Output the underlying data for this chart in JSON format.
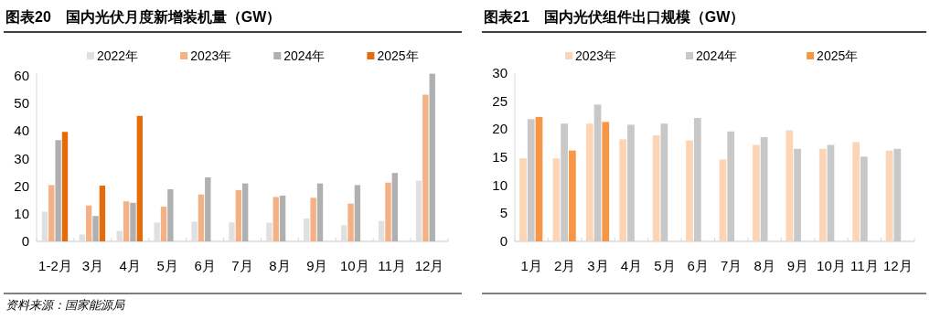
{
  "chart_data": [
    {
      "type": "bar",
      "title": "图表20　国内光伏月度新增装机量（GW）",
      "categories": [
        "1-2月",
        "3月",
        "4月",
        "5月",
        "6月",
        "7月",
        "8月",
        "9月",
        "10月",
        "11月",
        "12月"
      ],
      "series": [
        {
          "name": "2022年",
          "color": "#e0e0e0",
          "values": [
            10.8,
            2.5,
            3.8,
            6.8,
            7.2,
            6.9,
            6.8,
            8.3,
            5.9,
            7.4,
            22.0
          ]
        },
        {
          "name": "2023年",
          "color": "#f4b183",
          "values": [
            20.4,
            13.0,
            14.5,
            12.6,
            17.0,
            18.6,
            16.1,
            15.8,
            13.7,
            21.3,
            53.2
          ]
        },
        {
          "name": "2024年",
          "color": "#b0b0b0",
          "values": [
            36.7,
            9.2,
            14.0,
            18.9,
            23.2,
            21.0,
            16.6,
            21.0,
            20.4,
            24.8,
            60.8
          ]
        },
        {
          "name": "2025年",
          "color": "#e46c0a",
          "values": [
            39.7,
            20.2,
            45.5,
            null,
            null,
            null,
            null,
            null,
            null,
            null,
            null
          ]
        }
      ],
      "ylim": [
        0,
        61
      ],
      "yticks": [
        0,
        10,
        20,
        30,
        40,
        50,
        60
      ],
      "grid": false,
      "legend": "top",
      "annotations": [
        "资料来源：国家能源局"
      ]
    },
    {
      "type": "bar",
      "title": "图表21　国内光伏组件出口规模（GW）",
      "categories": [
        "1月",
        "2月",
        "3月",
        "4月",
        "5月",
        "6月",
        "7月",
        "8月",
        "9月",
        "10月",
        "11月",
        "12月"
      ],
      "series": [
        {
          "name": "2023年",
          "color": "#fbd5b5",
          "values": [
            14.8,
            14.8,
            21.0,
            18.2,
            18.9,
            18.0,
            14.6,
            17.2,
            19.8,
            16.5,
            17.7,
            16.2
          ]
        },
        {
          "name": "2024年",
          "color": "#c8c8c8",
          "values": [
            21.8,
            21.0,
            24.4,
            20.8,
            21.0,
            22.0,
            19.6,
            18.6,
            16.5,
            17.2,
            15.1,
            16.5
          ]
        },
        {
          "name": "2025年",
          "color": "#f79646",
          "values": [
            22.2,
            16.2,
            21.3,
            null,
            null,
            null,
            null,
            null,
            null,
            null,
            null,
            null
          ]
        }
      ],
      "ylim": [
        0,
        30
      ],
      "yticks": [
        0,
        5,
        10,
        15,
        20,
        25,
        30
      ],
      "grid": false,
      "legend": "top"
    }
  ]
}
